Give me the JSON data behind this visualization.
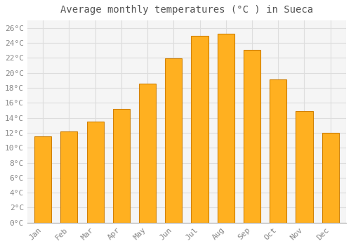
{
  "title": "Average monthly temperatures (°C ) in Sueca",
  "months": [
    "Jan",
    "Feb",
    "Mar",
    "Apr",
    "May",
    "Jun",
    "Jul",
    "Aug",
    "Sep",
    "Oct",
    "Nov",
    "Dec"
  ],
  "values": [
    11.5,
    12.2,
    13.5,
    15.2,
    18.6,
    21.9,
    24.9,
    25.2,
    23.1,
    19.1,
    14.9,
    12.0
  ],
  "bar_color": "#FFB020",
  "bar_edge_color": "#D08000",
  "background_color": "#FFFFFF",
  "plot_bg_color": "#F5F5F5",
  "grid_color": "#DDDDDD",
  "ylim": [
    0,
    27
  ],
  "yticks": [
    0,
    2,
    4,
    6,
    8,
    10,
    12,
    14,
    16,
    18,
    20,
    22,
    24,
    26
  ],
  "title_fontsize": 10,
  "tick_fontsize": 8,
  "tick_font_family": "monospace",
  "title_color": "#555555",
  "tick_color": "#888888"
}
